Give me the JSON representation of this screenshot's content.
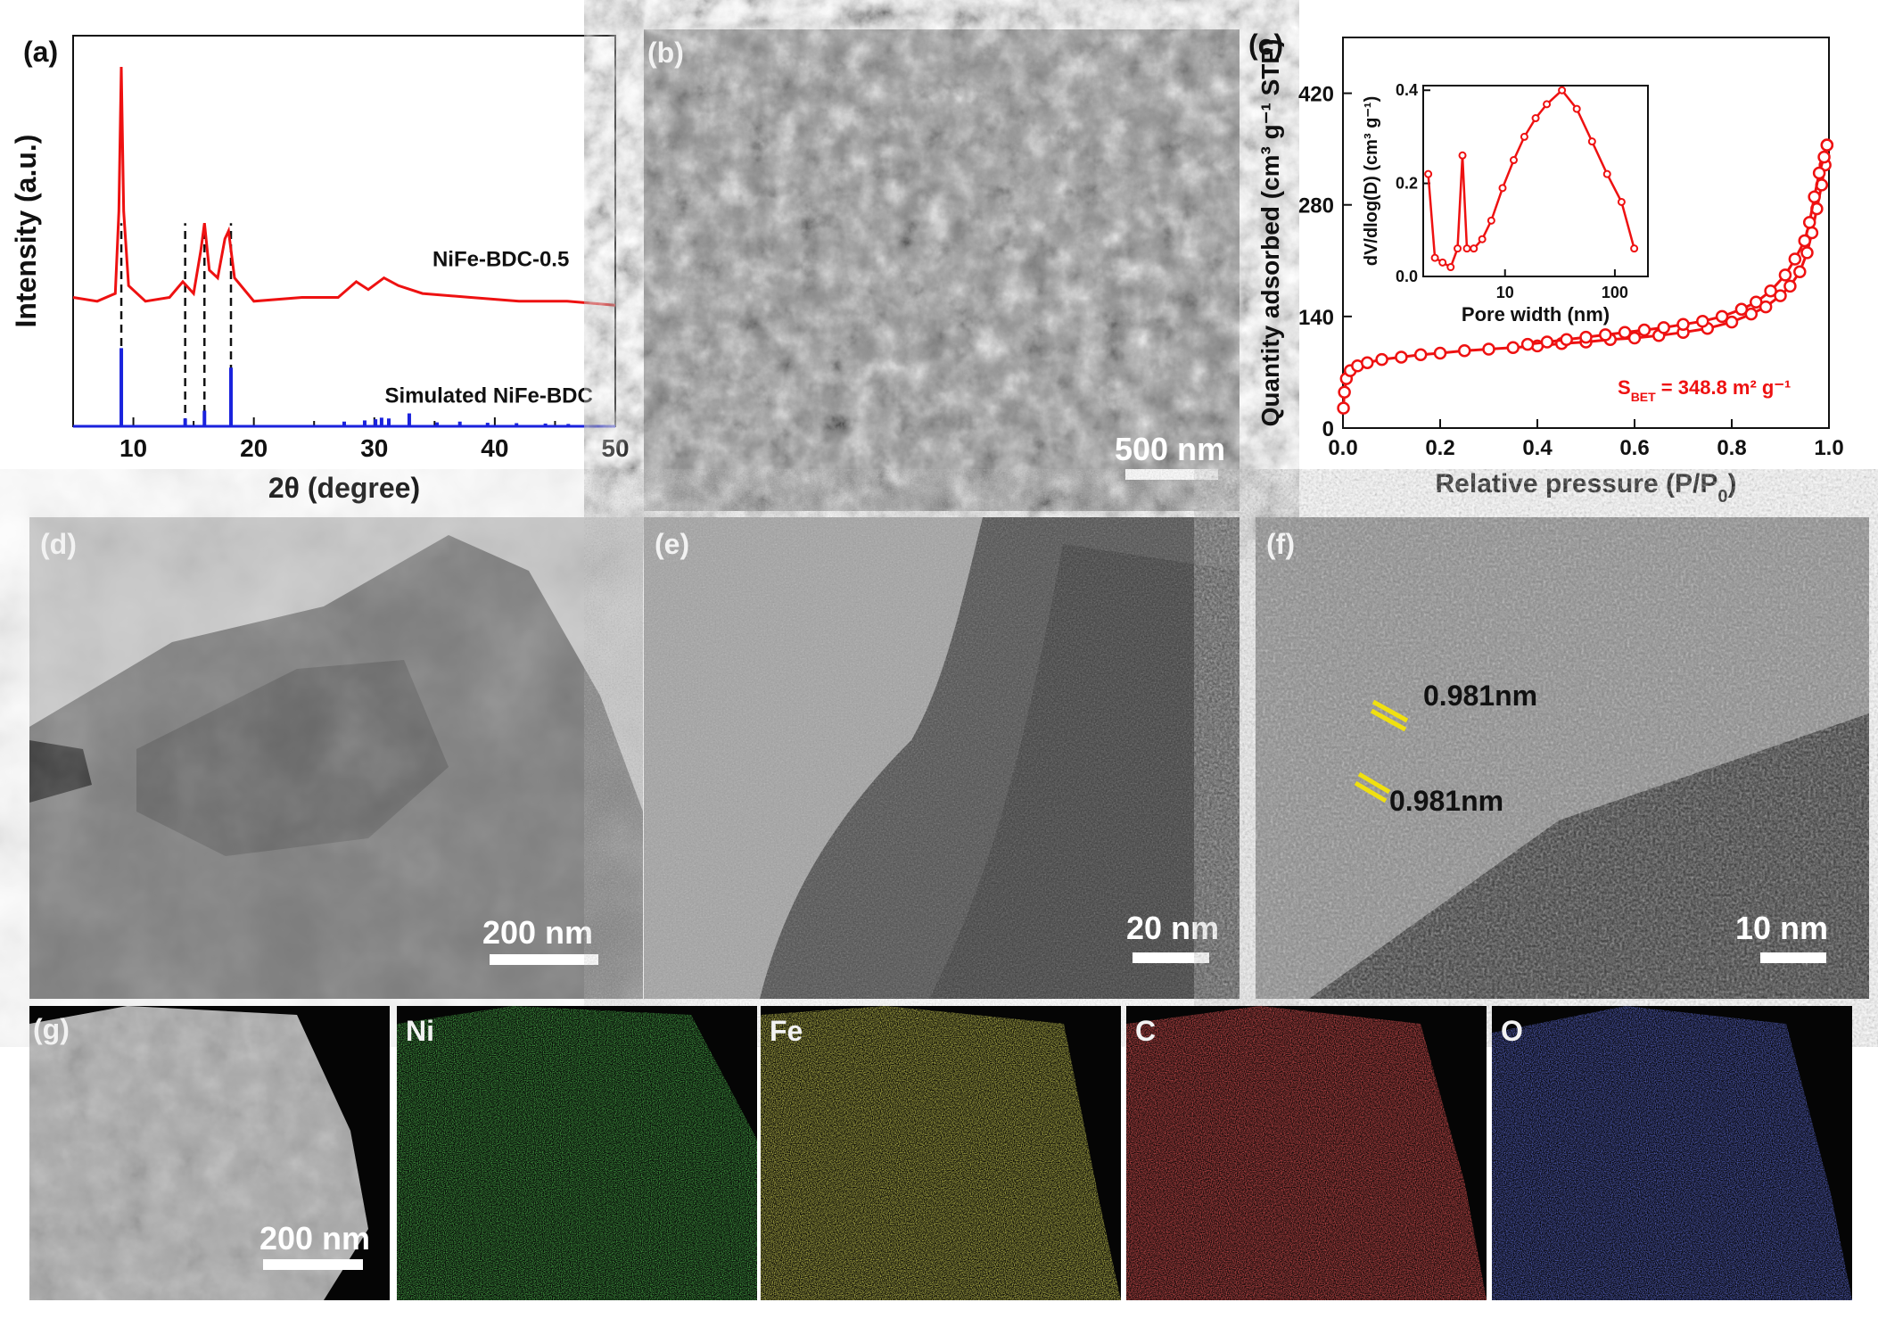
{
  "figure": {
    "panels": {
      "a": {
        "label": "(a)"
      },
      "b": {
        "label": "(b)",
        "scale_bar": "500 nm"
      },
      "c": {
        "label": "(c)"
      },
      "d": {
        "label": "(d)",
        "scale_bar": "200 nm"
      },
      "e": {
        "label": "(e)",
        "scale_bar": "20 nm"
      },
      "f": {
        "label": "(f)",
        "scale_bar": "10 nm",
        "annotations": [
          "0.981nm",
          "0.981nm"
        ]
      },
      "g": {
        "label": "(g)",
        "scale_bar": "200 nm"
      },
      "maps": [
        {
          "element": "Ni",
          "color": "#1fd21f"
        },
        {
          "element": "Fe",
          "color": "#e0e020"
        },
        {
          "element": "C",
          "color": "#e51a1a"
        },
        {
          "element": "O",
          "color": "#2430e0"
        }
      ]
    }
  },
  "chart_data": [
    {
      "panel": "a",
      "type": "line",
      "xlabel": "2θ (degree)",
      "ylabel": "Intensity (a.u.)",
      "xlim": [
        5,
        50
      ],
      "xticks": [
        "10",
        "20",
        "30",
        "40",
        "50"
      ],
      "series": [
        {
          "name": "NiFe-BDC-0.5",
          "color": "#ee1111",
          "x": [
            5,
            7,
            8.5,
            8.8,
            9.0,
            9.2,
            9.6,
            11,
            13,
            14.1,
            14.4,
            15,
            15.6,
            15.9,
            16.3,
            17,
            17.6,
            17.9,
            18.4,
            20,
            24,
            27,
            28.5,
            29.5,
            30.8,
            32,
            34,
            38,
            42,
            46,
            50
          ],
          "y": [
            0.33,
            0.32,
            0.34,
            0.55,
            0.92,
            0.55,
            0.36,
            0.32,
            0.33,
            0.37,
            0.36,
            0.34,
            0.45,
            0.52,
            0.4,
            0.38,
            0.48,
            0.5,
            0.38,
            0.32,
            0.33,
            0.33,
            0.37,
            0.35,
            0.38,
            0.36,
            0.34,
            0.33,
            0.32,
            0.32,
            0.31
          ]
        },
        {
          "name": "Simulated NiFe-BDC",
          "color": "#1a22dd",
          "x": [
            9.0,
            14.3,
            15.9,
            18.1,
            27.5,
            29.2,
            30.1,
            30.6,
            31.2,
            32.9,
            35.2,
            37.1,
            39.4,
            41.8,
            44.2,
            46.1
          ],
          "y": [
            0.2,
            0.02,
            0.04,
            0.15,
            0.012,
            0.015,
            0.018,
            0.022,
            0.02,
            0.033,
            0.01,
            0.012,
            0.009,
            0.008,
            0.007,
            0.006
          ]
        }
      ]
    },
    {
      "panel": "c",
      "type": "line",
      "xlabel": "Relative pressure (P/P",
      "xlabel_sub": "0",
      "xlabel_end": ")",
      "ylabel": "Quantity adsorbed (cm³ g⁻¹ STP)",
      "xlim": [
        0,
        1
      ],
      "ylim": [
        0,
        490
      ],
      "xticks": [
        "0.0",
        "0.2",
        "0.4",
        "0.6",
        "0.8",
        "1.0"
      ],
      "yticks": [
        "0",
        "140",
        "280",
        "420"
      ],
      "annotation": "S",
      "annotation_sub": "BET",
      "annotation_end": " = 348.8 m² g⁻¹",
      "series": [
        {
          "name": "adsorption",
          "color": "#ee1111",
          "x": [
            0.001,
            0.003,
            0.007,
            0.015,
            0.03,
            0.05,
            0.08,
            0.12,
            0.16,
            0.2,
            0.25,
            0.3,
            0.35,
            0.4,
            0.45,
            0.5,
            0.55,
            0.6,
            0.65,
            0.7,
            0.75,
            0.8,
            0.84,
            0.87,
            0.9,
            0.92,
            0.94,
            0.955,
            0.965,
            0.975,
            0.985,
            0.992,
            0.996
          ],
          "y": [
            25,
            45,
            62,
            72,
            78,
            82,
            86,
            89,
            92,
            94,
            97,
            99,
            101,
            103,
            106,
            108,
            111,
            113,
            116,
            120,
            125,
            133,
            143,
            152,
            166,
            178,
            196,
            220,
            245,
            275,
            305,
            330,
            355
          ]
        },
        {
          "name": "desorption",
          "color": "#ee1111",
          "x": [
            0.996,
            0.99,
            0.98,
            0.97,
            0.96,
            0.95,
            0.93,
            0.91,
            0.88,
            0.85,
            0.82,
            0.78,
            0.74,
            0.7,
            0.66,
            0.62,
            0.58,
            0.54,
            0.5,
            0.46,
            0.42,
            0.38
          ],
          "y": [
            355,
            340,
            320,
            290,
            258,
            235,
            212,
            192,
            172,
            158,
            149,
            140,
            134,
            130,
            126,
            123,
            120,
            117,
            114,
            111,
            108,
            105
          ]
        }
      ],
      "inset": {
        "type": "line",
        "xlabel": "Pore width (nm)",
        "ylabel": "dV/dlog(D) (cm³ g⁻¹)",
        "xscale": "log",
        "xlim": [
          1.8,
          200
        ],
        "ylim": [
          0,
          0.41
        ],
        "xticks": [
          "10",
          "100"
        ],
        "yticks": [
          "0.0",
          "0.2",
          "0.4"
        ],
        "series": [
          {
            "name": "pore size distribution",
            "color": "#ee1111",
            "x": [
              2.0,
              2.3,
              2.7,
              3.2,
              3.7,
              4.1,
              4.5,
              5.2,
              6.2,
              7.5,
              9.5,
              12,
              15,
              19,
              24,
              33,
              45,
              62,
              85,
              115,
              150
            ],
            "y": [
              0.22,
              0.04,
              0.03,
              0.02,
              0.06,
              0.26,
              0.06,
              0.06,
              0.08,
              0.12,
              0.19,
              0.25,
              0.3,
              0.34,
              0.37,
              0.4,
              0.36,
              0.29,
              0.22,
              0.16,
              0.06
            ]
          }
        ]
      }
    }
  ]
}
